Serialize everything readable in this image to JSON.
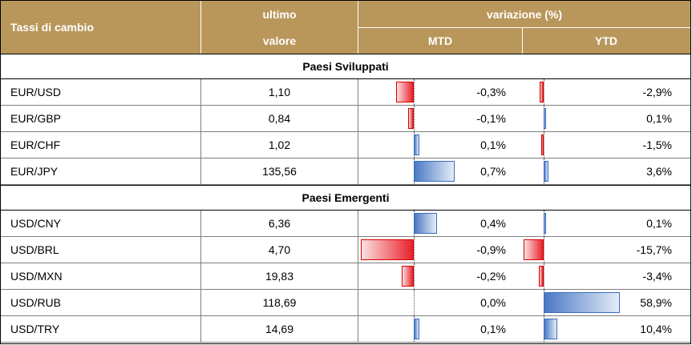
{
  "header": {
    "name_col": "Tassi di cambio",
    "last_value_line1": "ultimo",
    "last_value_line2": "valore",
    "change_group": "variazione (%)",
    "mtd": "MTD",
    "ytd": "YTD"
  },
  "colors": {
    "header_bg": "#b9975b",
    "negative_bar": "#e8212b",
    "positive_bar": "#4a78c4"
  },
  "sections": [
    {
      "title": "Paesi Sviluppati",
      "rows": [
        {
          "pair": "EUR/USD",
          "value": "1,10",
          "mtd": "-0,3%",
          "mtd_num": -0.3,
          "ytd": "-2,9%",
          "ytd_num": -2.9
        },
        {
          "pair": "EUR/GBP",
          "value": "0,84",
          "mtd": "-0,1%",
          "mtd_num": -0.1,
          "ytd": "0,1%",
          "ytd_num": 0.1
        },
        {
          "pair": "EUR/CHF",
          "value": "1,02",
          "mtd": "0,1%",
          "mtd_num": 0.1,
          "ytd": "-1,5%",
          "ytd_num": -1.5
        },
        {
          "pair": "EUR/JPY",
          "value": "135,56",
          "mtd": "0,7%",
          "mtd_num": 0.7,
          "ytd": "3,6%",
          "ytd_num": 3.6
        }
      ]
    },
    {
      "title": "Paesi Emergenti",
      "rows": [
        {
          "pair": "USD/CNY",
          "value": "6,36",
          "mtd": "0,4%",
          "mtd_num": 0.4,
          "ytd": "0,1%",
          "ytd_num": 0.1
        },
        {
          "pair": "USD/BRL",
          "value": "4,70",
          "mtd": "-0,9%",
          "mtd_num": -0.9,
          "ytd": "-15,7%",
          "ytd_num": -15.7
        },
        {
          "pair": "USD/MXN",
          "value": "19,83",
          "mtd": "-0,2%",
          "mtd_num": -0.2,
          "ytd": "-3,4%",
          "ytd_num": -3.4
        },
        {
          "pair": "USD/RUB",
          "value": "118,69",
          "mtd": "0,0%",
          "mtd_num": 0.0,
          "ytd": "58,9%",
          "ytd_num": 58.9
        },
        {
          "pair": "USD/TRY",
          "value": "14,69",
          "mtd": "0,1%",
          "mtd_num": 0.1,
          "ytd": "10,4%",
          "ytd_num": 10.4
        }
      ]
    }
  ]
}
